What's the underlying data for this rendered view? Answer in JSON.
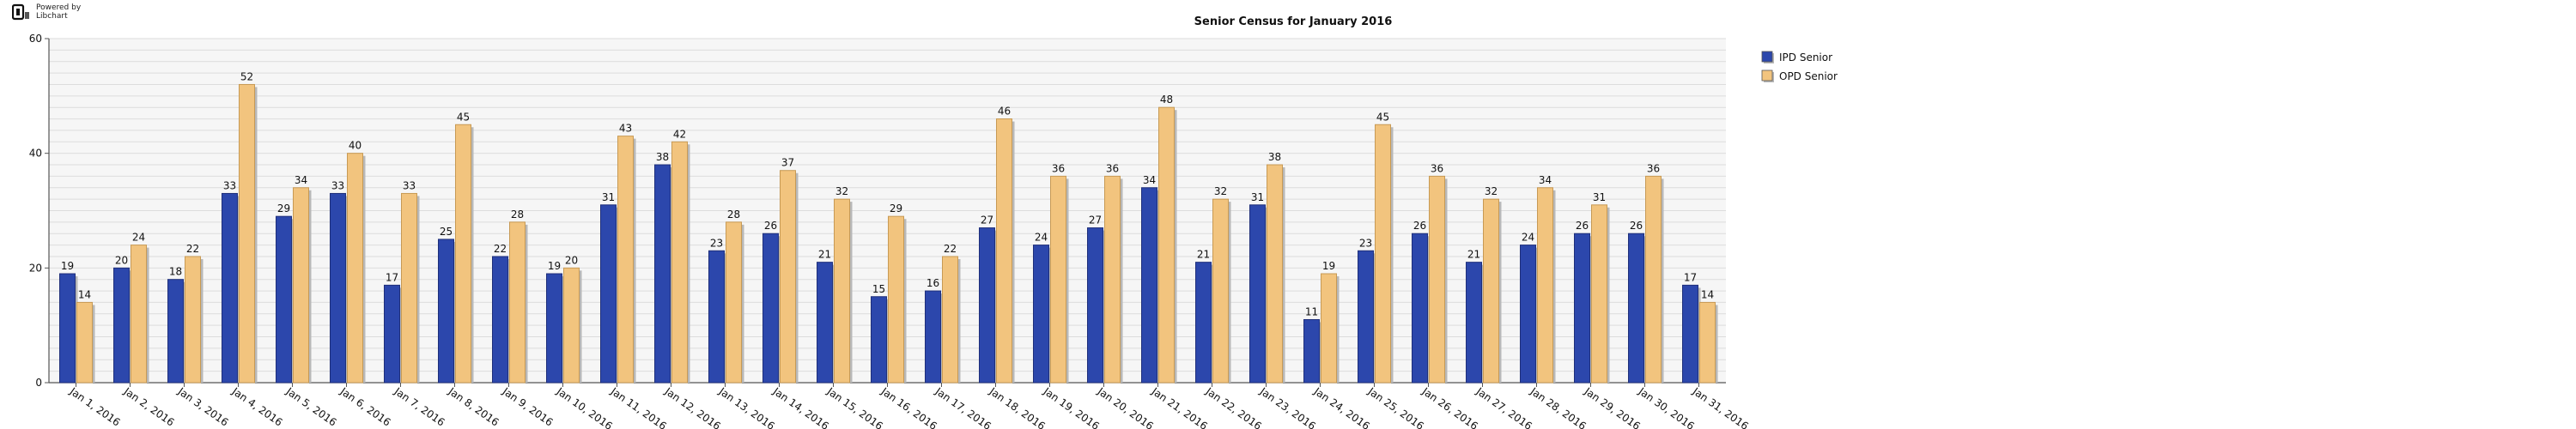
{
  "brand": {
    "line1": "Powered by",
    "line2": "Libchart"
  },
  "chart_data": {
    "type": "bar",
    "title": "Senior Census for January 2016",
    "xlabel": "",
    "ylabel": "",
    "ylim": [
      0,
      60
    ],
    "yticks": [
      0,
      20,
      40,
      60
    ],
    "grid": true,
    "legend_position": "top-right",
    "categories": [
      "Jan 1, 2016",
      "Jan 2, 2016",
      "Jan 3, 2016",
      "Jan 4, 2016",
      "Jan 5, 2016",
      "Jan 6, 2016",
      "Jan 7, 2016",
      "Jan 8, 2016",
      "Jan 9, 2016",
      "Jan 10, 2016",
      "Jan 11, 2016",
      "Jan 12, 2016",
      "Jan 13, 2016",
      "Jan 14, 2016",
      "Jan 15, 2016",
      "Jan 16, 2016",
      "Jan 17, 2016",
      "Jan 18, 2016",
      "Jan 19, 2016",
      "Jan 20, 2016",
      "Jan 21, 2016",
      "Jan 22, 2016",
      "Jan 23, 2016",
      "Jan 24, 2016",
      "Jan 25, 2016",
      "Jan 26, 2016",
      "Jan 27, 2016",
      "Jan 28, 2016",
      "Jan 29, 2016",
      "Jan 30, 2016",
      "Jan 31, 2016"
    ],
    "series": [
      {
        "name": "IPD Senior",
        "color": "#2c47ac",
        "values": [
          19,
          20,
          18,
          33,
          29,
          33,
          17,
          25,
          22,
          19,
          31,
          38,
          23,
          26,
          21,
          15,
          16,
          27,
          24,
          27,
          34,
          21,
          31,
          11,
          23,
          26,
          21,
          24,
          26,
          26,
          17
        ]
      },
      {
        "name": "OPD Senior",
        "color": "#f2c47e",
        "values": [
          14,
          24,
          22,
          52,
          34,
          40,
          33,
          45,
          28,
          20,
          43,
          42,
          28,
          37,
          32,
          29,
          22,
          46,
          36,
          36,
          48,
          32,
          38,
          19,
          45,
          36,
          32,
          34,
          31,
          36,
          14
        ]
      }
    ]
  }
}
